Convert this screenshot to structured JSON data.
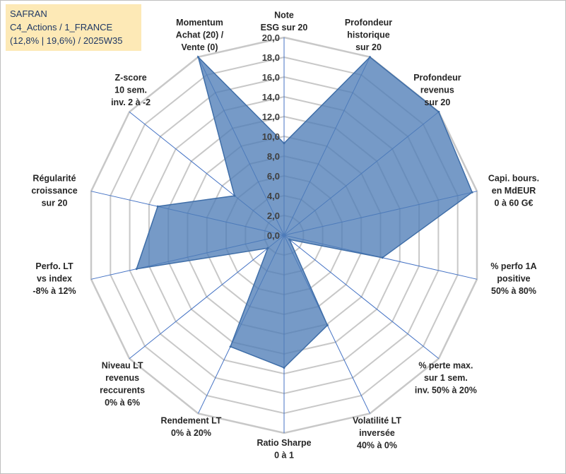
{
  "info": {
    "line1": "SAFRAN",
    "line2": "C4_Actions / 1_FRANCE",
    "line3": "(12,8% | 19,6%) / 2025W35"
  },
  "colors": {
    "fill": "#4f7db7",
    "stroke": "#3f6ea8",
    "grid": "#c8c8c8",
    "spoke": "#4472c4"
  },
  "chart_data": {
    "type": "radar",
    "title": "",
    "rmax": 20,
    "tick_step": 2,
    "tick_labels": [
      "0,0",
      "2,0",
      "4,0",
      "6,0",
      "8,0",
      "10,0",
      "12,0",
      "14,0",
      "16,0",
      "18,0",
      "20,0"
    ],
    "axes": [
      {
        "label": [
          "Note",
          "ESG sur 20"
        ]
      },
      {
        "label": [
          "Profondeur",
          "historique",
          "sur 20"
        ]
      },
      {
        "label": [
          "Profondeur",
          "revenus",
          "sur 20"
        ]
      },
      {
        "label": [
          "Capi. bours.",
          "en MdEUR",
          "0 à 60 G€"
        ]
      },
      {
        "label": [
          "% perfo 1A",
          "positive",
          "50% à 80%"
        ]
      },
      {
        "label": [
          "% perte max.",
          "sur 1 sem.",
          "inv. 50% à 20%"
        ]
      },
      {
        "label": [
          "Volatilité LT",
          "inversée",
          "40% à 0%"
        ]
      },
      {
        "label": [
          "Ratio Sharpe",
          "0 à 1"
        ]
      },
      {
        "label": [
          "Rendement LT",
          "0% à 20%"
        ]
      },
      {
        "label": [
          "Niveau LT",
          "revenus",
          "reccurents",
          "0% à 6%"
        ]
      },
      {
        "label": [
          "Perfo. LT",
          "vs index",
          "-8% à 12%"
        ]
      },
      {
        "label": [
          "Régularité",
          "croissance",
          "sur 20"
        ]
      },
      {
        "label": [
          "Z-score",
          "10 sem.",
          "inv. 2 à -2"
        ]
      },
      {
        "label": [
          "Momentum",
          "Achat (20) /",
          "Vente (0)"
        ]
      }
    ],
    "series": [
      {
        "values": [
          9.3,
          20.0,
          20.0,
          19.5,
          10.2,
          0.7,
          10.1,
          13.4,
          12.5,
          2.1,
          15.3,
          13.1,
          6.4,
          20.0
        ]
      }
    ]
  }
}
